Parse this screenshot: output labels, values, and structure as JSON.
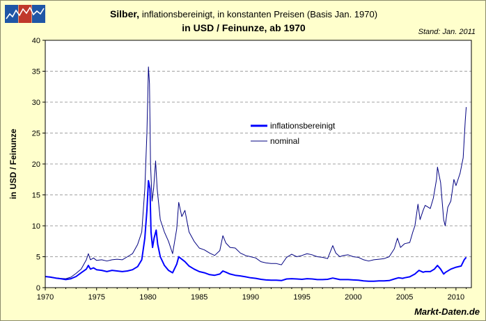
{
  "header": {
    "title_bold": "Silber,",
    "title_rest": "inflationsbereinigt, in konstanten Preisen (Basis Jan. 1970)",
    "subtitle": "in USD / Feinunze, ab 1970",
    "stand": "Stand: Jan. 2011",
    "source": "Markt-Daten.de"
  },
  "colors": {
    "background": "#FFFFCC",
    "plot_bg": "#FFFFFF",
    "inflation_line": "#0000FF",
    "nominal_line": "#000080",
    "grid": "#A0A0A0",
    "logo_blue": "#1F56A6",
    "logo_red": "#C0392B"
  },
  "logo": {
    "icon": "market-data-logo-icon"
  },
  "chart_data": {
    "type": "line",
    "ylabel": "in USD / Feinunze",
    "xlabel": "",
    "xlim": [
      1970,
      2011.5
    ],
    "ylim": [
      0,
      40
    ],
    "xticks": [
      1970,
      1975,
      1980,
      1985,
      1990,
      1995,
      2000,
      2005,
      2010
    ],
    "yticks": [
      0,
      5,
      10,
      15,
      20,
      25,
      30,
      35,
      40
    ],
    "grid": "horizontal dashed",
    "legend_position": "center-right",
    "series": [
      {
        "name": "inflationsbereinigt",
        "color": "#0000FF",
        "width": 2,
        "points": [
          [
            1970,
            1.8
          ],
          [
            1970.5,
            1.7
          ],
          [
            1971,
            1.55
          ],
          [
            1971.5,
            1.45
          ],
          [
            1972,
            1.3
          ],
          [
            1972.5,
            1.45
          ],
          [
            1973,
            1.8
          ],
          [
            1973.5,
            2.4
          ],
          [
            1974,
            3.0
          ],
          [
            1974.2,
            3.6
          ],
          [
            1974.4,
            3.0
          ],
          [
            1974.7,
            3.2
          ],
          [
            1975,
            2.9
          ],
          [
            1975.5,
            2.8
          ],
          [
            1976,
            2.6
          ],
          [
            1976.5,
            2.8
          ],
          [
            1977,
            2.7
          ],
          [
            1977.5,
            2.6
          ],
          [
            1978,
            2.7
          ],
          [
            1978.5,
            2.9
          ],
          [
            1979,
            3.4
          ],
          [
            1979.4,
            4.5
          ],
          [
            1979.7,
            8.0
          ],
          [
            1979.9,
            12.5
          ],
          [
            1980.05,
            17.3
          ],
          [
            1980.2,
            16.0
          ],
          [
            1980.3,
            9.0
          ],
          [
            1980.45,
            6.5
          ],
          [
            1980.6,
            8.0
          ],
          [
            1980.8,
            9.3
          ],
          [
            1980.95,
            7.0
          ],
          [
            1981.2,
            5.0
          ],
          [
            1981.6,
            3.6
          ],
          [
            1982,
            2.8
          ],
          [
            1982.4,
            2.4
          ],
          [
            1982.8,
            3.8
          ],
          [
            1983,
            5.0
          ],
          [
            1983.3,
            4.6
          ],
          [
            1983.6,
            4.2
          ],
          [
            1984,
            3.5
          ],
          [
            1984.5,
            3.0
          ],
          [
            1985,
            2.6
          ],
          [
            1985.5,
            2.4
          ],
          [
            1986,
            2.1
          ],
          [
            1986.5,
            2.0
          ],
          [
            1987,
            2.2
          ],
          [
            1987.3,
            2.7
          ],
          [
            1987.6,
            2.5
          ],
          [
            1988,
            2.2
          ],
          [
            1988.5,
            2.0
          ],
          [
            1989,
            1.9
          ],
          [
            1989.5,
            1.75
          ],
          [
            1990,
            1.6
          ],
          [
            1990.5,
            1.5
          ],
          [
            1991,
            1.35
          ],
          [
            1991.5,
            1.25
          ],
          [
            1992,
            1.2
          ],
          [
            1992.5,
            1.2
          ],
          [
            1993,
            1.15
          ],
          [
            1993.5,
            1.4
          ],
          [
            1994,
            1.45
          ],
          [
            1994.5,
            1.4
          ],
          [
            1995,
            1.35
          ],
          [
            1995.5,
            1.45
          ],
          [
            1996,
            1.4
          ],
          [
            1996.5,
            1.3
          ],
          [
            1997,
            1.3
          ],
          [
            1997.5,
            1.35
          ],
          [
            1998,
            1.55
          ],
          [
            1998.3,
            1.45
          ],
          [
            1998.7,
            1.3
          ],
          [
            1999,
            1.3
          ],
          [
            1999.5,
            1.3
          ],
          [
            2000,
            1.25
          ],
          [
            2000.5,
            1.2
          ],
          [
            2001,
            1.1
          ],
          [
            2001.5,
            1.05
          ],
          [
            2002,
            1.05
          ],
          [
            2002.5,
            1.1
          ],
          [
            2003,
            1.1
          ],
          [
            2003.5,
            1.15
          ],
          [
            2004,
            1.4
          ],
          [
            2004.4,
            1.6
          ],
          [
            2004.8,
            1.5
          ],
          [
            2005,
            1.6
          ],
          [
            2005.5,
            1.75
          ],
          [
            2006,
            2.2
          ],
          [
            2006.4,
            2.8
          ],
          [
            2006.8,
            2.5
          ],
          [
            2007,
            2.6
          ],
          [
            2007.5,
            2.6
          ],
          [
            2007.9,
            3.0
          ],
          [
            2008.2,
            3.6
          ],
          [
            2008.5,
            3.0
          ],
          [
            2008.8,
            2.2
          ],
          [
            2009,
            2.5
          ],
          [
            2009.5,
            3.0
          ],
          [
            2010,
            3.3
          ],
          [
            2010.5,
            3.5
          ],
          [
            2010.8,
            4.5
          ],
          [
            2011,
            4.9
          ]
        ]
      },
      {
        "name": "nominal",
        "color": "#000080",
        "width": 1,
        "points": [
          [
            1970,
            1.8
          ],
          [
            1970.5,
            1.75
          ],
          [
            1971,
            1.6
          ],
          [
            1971.5,
            1.5
          ],
          [
            1972,
            1.45
          ],
          [
            1972.5,
            1.7
          ],
          [
            1973,
            2.3
          ],
          [
            1973.5,
            3.0
          ],
          [
            1974,
            4.5
          ],
          [
            1974.2,
            5.5
          ],
          [
            1974.4,
            4.5
          ],
          [
            1974.7,
            4.8
          ],
          [
            1975,
            4.4
          ],
          [
            1975.5,
            4.5
          ],
          [
            1976,
            4.3
          ],
          [
            1976.5,
            4.5
          ],
          [
            1977,
            4.6
          ],
          [
            1977.5,
            4.5
          ],
          [
            1978,
            5.0
          ],
          [
            1978.5,
            5.5
          ],
          [
            1979,
            7.0
          ],
          [
            1979.4,
            9.0
          ],
          [
            1979.7,
            16.0
          ],
          [
            1979.9,
            25.0
          ],
          [
            1980.05,
            35.7
          ],
          [
            1980.15,
            33.0
          ],
          [
            1980.25,
            20.0
          ],
          [
            1980.4,
            14.0
          ],
          [
            1980.55,
            16.0
          ],
          [
            1980.75,
            20.5
          ],
          [
            1980.9,
            16.0
          ],
          [
            1981.2,
            11.0
          ],
          [
            1981.6,
            9.0
          ],
          [
            1982,
            7.5
          ],
          [
            1982.4,
            5.5
          ],
          [
            1982.8,
            9.5
          ],
          [
            1983,
            13.8
          ],
          [
            1983.3,
            11.5
          ],
          [
            1983.6,
            12.5
          ],
          [
            1984,
            9.0
          ],
          [
            1984.5,
            7.5
          ],
          [
            1985,
            6.4
          ],
          [
            1985.5,
            6.1
          ],
          [
            1986,
            5.6
          ],
          [
            1986.5,
            5.2
          ],
          [
            1987,
            6.0
          ],
          [
            1987.3,
            8.4
          ],
          [
            1987.6,
            7.2
          ],
          [
            1988,
            6.5
          ],
          [
            1988.5,
            6.4
          ],
          [
            1989,
            5.6
          ],
          [
            1989.5,
            5.2
          ],
          [
            1990,
            5.0
          ],
          [
            1990.5,
            4.8
          ],
          [
            1991,
            4.2
          ],
          [
            1991.5,
            4.0
          ],
          [
            1992,
            3.9
          ],
          [
            1992.5,
            3.9
          ],
          [
            1993,
            3.7
          ],
          [
            1993.5,
            4.9
          ],
          [
            1994,
            5.4
          ],
          [
            1994.5,
            5.0
          ],
          [
            1995,
            5.2
          ],
          [
            1995.5,
            5.5
          ],
          [
            1996,
            5.3
          ],
          [
            1996.5,
            5.0
          ],
          [
            1997,
            4.9
          ],
          [
            1997.5,
            4.7
          ],
          [
            1998,
            6.8
          ],
          [
            1998.3,
            5.6
          ],
          [
            1998.7,
            5.0
          ],
          [
            1999,
            5.2
          ],
          [
            1999.5,
            5.3
          ],
          [
            2000,
            5.0
          ],
          [
            2000.5,
            4.9
          ],
          [
            2001,
            4.5
          ],
          [
            2001.5,
            4.3
          ],
          [
            2002,
            4.5
          ],
          [
            2002.5,
            4.6
          ],
          [
            2003,
            4.7
          ],
          [
            2003.5,
            5.0
          ],
          [
            2004,
            6.3
          ],
          [
            2004.3,
            8.0
          ],
          [
            2004.6,
            6.5
          ],
          [
            2005,
            7.1
          ],
          [
            2005.5,
            7.3
          ],
          [
            2005.8,
            9.0
          ],
          [
            2006,
            10.0
          ],
          [
            2006.3,
            13.5
          ],
          [
            2006.5,
            11.0
          ],
          [
            2006.8,
            12.5
          ],
          [
            2007,
            13.3
          ],
          [
            2007.5,
            12.8
          ],
          [
            2007.8,
            14.5
          ],
          [
            2008.1,
            17.5
          ],
          [
            2008.2,
            19.5
          ],
          [
            2008.5,
            17.0
          ],
          [
            2008.8,
            11.0
          ],
          [
            2008.95,
            10.0
          ],
          [
            2009.2,
            13.0
          ],
          [
            2009.5,
            14.0
          ],
          [
            2009.8,
            17.5
          ],
          [
            2010,
            16.5
          ],
          [
            2010.4,
            18.5
          ],
          [
            2010.7,
            21.0
          ],
          [
            2010.9,
            27.0
          ],
          [
            2011,
            29.2
          ]
        ]
      }
    ]
  }
}
